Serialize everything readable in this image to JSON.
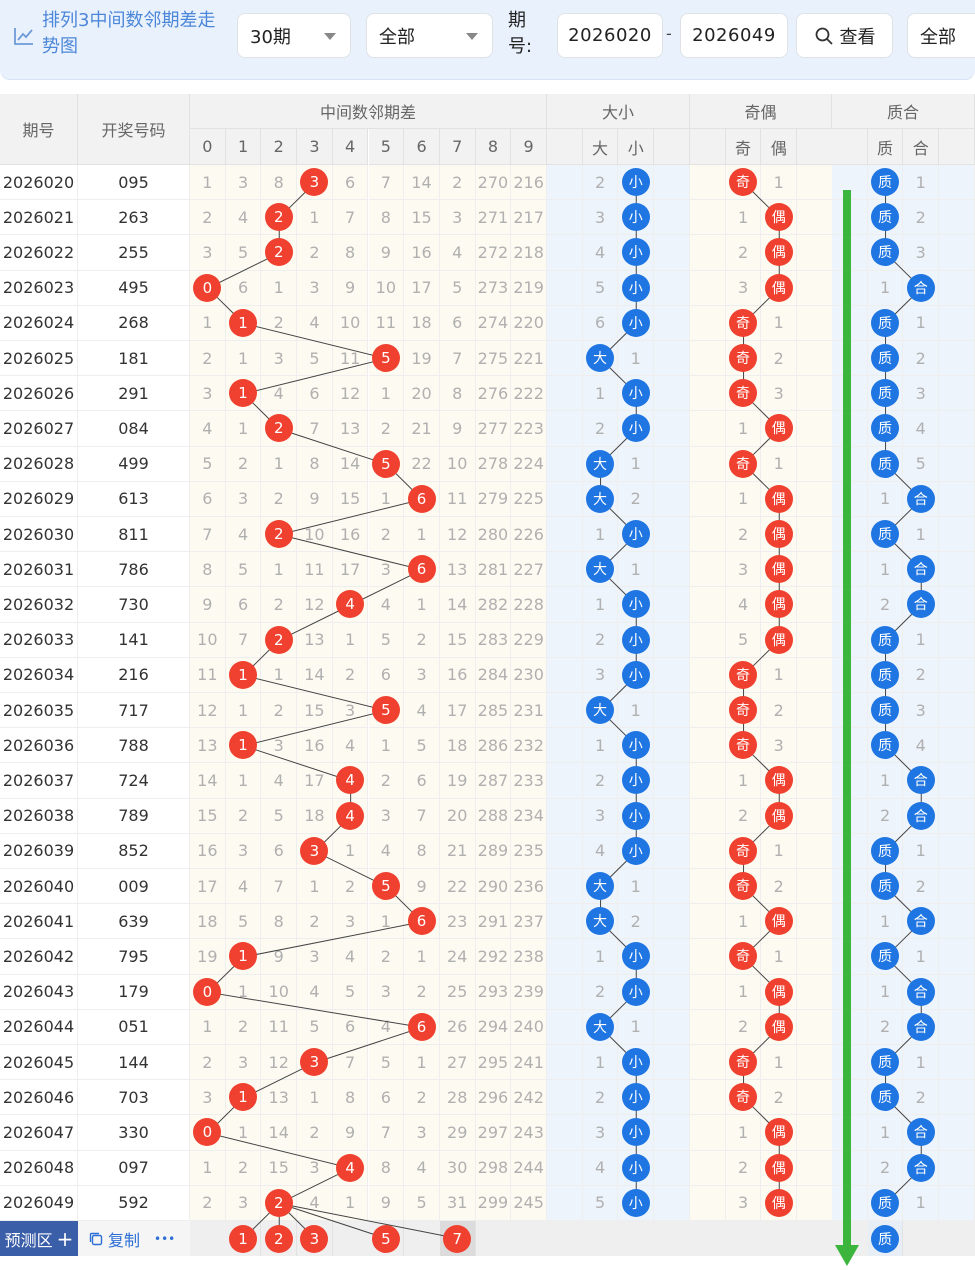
{
  "header": {
    "title": "排列3中间数邻期差走势图",
    "period_select": "30期",
    "filter_select": "全部",
    "issue_label": "期号:",
    "issue_from": "2026020",
    "issue_to": "2026049",
    "view_button": "查看",
    "all_button": "全部"
  },
  "columns": {
    "period": "期号",
    "draw": "开奖号码",
    "mid_group": "中间数邻期差",
    "mid_digits": [
      "0",
      "1",
      "2",
      "3",
      "4",
      "5",
      "6",
      "7",
      "8",
      "9"
    ],
    "size_group": "大小",
    "size_labels": [
      "大",
      "小"
    ],
    "odd_group": "奇偶",
    "odd_labels": [
      "奇",
      "偶"
    ],
    "prime_group": "质合",
    "prime_labels": [
      "质",
      "合"
    ]
  },
  "rows": [
    {
      "p": "2026020",
      "d": "095",
      "mid": [
        "1",
        "3",
        "8",
        "3",
        "6",
        "7",
        "14",
        "2",
        "270",
        "216"
      ],
      "hit": 3,
      "size": [
        "2",
        "小"
      ],
      "sizeHit": 1,
      "odd": [
        "奇",
        "1"
      ],
      "oddHit": 0,
      "prime": [
        "质",
        "1"
      ],
      "primeHit": 0
    },
    {
      "p": "2026021",
      "d": "263",
      "mid": [
        "2",
        "4",
        "2",
        "1",
        "7",
        "8",
        "15",
        "3",
        "271",
        "217"
      ],
      "hit": 2,
      "size": [
        "3",
        "小"
      ],
      "sizeHit": 1,
      "odd": [
        "1",
        "偶"
      ],
      "oddHit": 1,
      "prime": [
        "质",
        "2"
      ],
      "primeHit": 0
    },
    {
      "p": "2026022",
      "d": "255",
      "mid": [
        "3",
        "5",
        "2",
        "2",
        "8",
        "9",
        "16",
        "4",
        "272",
        "218"
      ],
      "hit": 2,
      "size": [
        "4",
        "小"
      ],
      "sizeHit": 1,
      "odd": [
        "2",
        "偶"
      ],
      "oddHit": 1,
      "prime": [
        "质",
        "3"
      ],
      "primeHit": 0
    },
    {
      "p": "2026023",
      "d": "495",
      "mid": [
        "0",
        "6",
        "1",
        "3",
        "9",
        "10",
        "17",
        "5",
        "273",
        "219"
      ],
      "hit": 0,
      "size": [
        "5",
        "小"
      ],
      "sizeHit": 1,
      "odd": [
        "3",
        "偶"
      ],
      "oddHit": 1,
      "prime": [
        "1",
        "合"
      ],
      "primeHit": 1
    },
    {
      "p": "2026024",
      "d": "268",
      "mid": [
        "1",
        "1",
        "2",
        "4",
        "10",
        "11",
        "18",
        "6",
        "274",
        "220"
      ],
      "hit": 1,
      "size": [
        "6",
        "小"
      ],
      "sizeHit": 1,
      "odd": [
        "奇",
        "1"
      ],
      "oddHit": 0,
      "prime": [
        "质",
        "1"
      ],
      "primeHit": 0
    },
    {
      "p": "2026025",
      "d": "181",
      "mid": [
        "2",
        "1",
        "3",
        "5",
        "11",
        "5",
        "19",
        "7",
        "275",
        "221"
      ],
      "hit": 5,
      "size": [
        "大",
        "1"
      ],
      "sizeHit": 0,
      "odd": [
        "奇",
        "2"
      ],
      "oddHit": 0,
      "prime": [
        "质",
        "2"
      ],
      "primeHit": 0
    },
    {
      "p": "2026026",
      "d": "291",
      "mid": [
        "3",
        "1",
        "4",
        "6",
        "12",
        "1",
        "20",
        "8",
        "276",
        "222"
      ],
      "hit": 1,
      "size": [
        "1",
        "小"
      ],
      "sizeHit": 1,
      "odd": [
        "奇",
        "3"
      ],
      "oddHit": 0,
      "prime": [
        "质",
        "3"
      ],
      "primeHit": 0
    },
    {
      "p": "2026027",
      "d": "084",
      "mid": [
        "4",
        "1",
        "2",
        "7",
        "13",
        "2",
        "21",
        "9",
        "277",
        "223"
      ],
      "hit": 2,
      "size": [
        "2",
        "小"
      ],
      "sizeHit": 1,
      "odd": [
        "1",
        "偶"
      ],
      "oddHit": 1,
      "prime": [
        "质",
        "4"
      ],
      "primeHit": 0
    },
    {
      "p": "2026028",
      "d": "499",
      "mid": [
        "5",
        "2",
        "1",
        "8",
        "14",
        "5",
        "22",
        "10",
        "278",
        "224"
      ],
      "hit": 5,
      "size": [
        "大",
        "1"
      ],
      "sizeHit": 0,
      "odd": [
        "奇",
        "1"
      ],
      "oddHit": 0,
      "prime": [
        "质",
        "5"
      ],
      "primeHit": 0
    },
    {
      "p": "2026029",
      "d": "613",
      "mid": [
        "6",
        "3",
        "2",
        "9",
        "15",
        "1",
        "6",
        "11",
        "279",
        "225"
      ],
      "hit": 6,
      "size": [
        "大",
        "2"
      ],
      "sizeHit": 0,
      "odd": [
        "1",
        "偶"
      ],
      "oddHit": 1,
      "prime": [
        "1",
        "合"
      ],
      "primeHit": 1
    },
    {
      "p": "2026030",
      "d": "811",
      "mid": [
        "7",
        "4",
        "2",
        "10",
        "16",
        "2",
        "1",
        "12",
        "280",
        "226"
      ],
      "hit": 2,
      "size": [
        "1",
        "小"
      ],
      "sizeHit": 1,
      "odd": [
        "2",
        "偶"
      ],
      "oddHit": 1,
      "prime": [
        "质",
        "1"
      ],
      "primeHit": 0
    },
    {
      "p": "2026031",
      "d": "786",
      "mid": [
        "8",
        "5",
        "1",
        "11",
        "17",
        "3",
        "6",
        "13",
        "281",
        "227"
      ],
      "hit": 6,
      "size": [
        "大",
        "1"
      ],
      "sizeHit": 0,
      "odd": [
        "3",
        "偶"
      ],
      "oddHit": 1,
      "prime": [
        "1",
        "合"
      ],
      "primeHit": 1
    },
    {
      "p": "2026032",
      "d": "730",
      "mid": [
        "9",
        "6",
        "2",
        "12",
        "4",
        "4",
        "1",
        "14",
        "282",
        "228"
      ],
      "hit": 4,
      "size": [
        "1",
        "小"
      ],
      "sizeHit": 1,
      "odd": [
        "4",
        "偶"
      ],
      "oddHit": 1,
      "prime": [
        "2",
        "合"
      ],
      "primeHit": 1
    },
    {
      "p": "2026033",
      "d": "141",
      "mid": [
        "10",
        "7",
        "2",
        "13",
        "1",
        "5",
        "2",
        "15",
        "283",
        "229"
      ],
      "hit": 2,
      "size": [
        "2",
        "小"
      ],
      "sizeHit": 1,
      "odd": [
        "5",
        "偶"
      ],
      "oddHit": 1,
      "prime": [
        "质",
        "1"
      ],
      "primeHit": 0
    },
    {
      "p": "2026034",
      "d": "216",
      "mid": [
        "11",
        "1",
        "1",
        "14",
        "2",
        "6",
        "3",
        "16",
        "284",
        "230"
      ],
      "hit": 1,
      "size": [
        "3",
        "小"
      ],
      "sizeHit": 1,
      "odd": [
        "奇",
        "1"
      ],
      "oddHit": 0,
      "prime": [
        "质",
        "2"
      ],
      "primeHit": 0
    },
    {
      "p": "2026035",
      "d": "717",
      "mid": [
        "12",
        "1",
        "2",
        "15",
        "3",
        "5",
        "4",
        "17",
        "285",
        "231"
      ],
      "hit": 5,
      "size": [
        "大",
        "1"
      ],
      "sizeHit": 0,
      "odd": [
        "奇",
        "2"
      ],
      "oddHit": 0,
      "prime": [
        "质",
        "3"
      ],
      "primeHit": 0
    },
    {
      "p": "2026036",
      "d": "788",
      "mid": [
        "13",
        "1",
        "3",
        "16",
        "4",
        "1",
        "5",
        "18",
        "286",
        "232"
      ],
      "hit": 1,
      "size": [
        "1",
        "小"
      ],
      "sizeHit": 1,
      "odd": [
        "奇",
        "3"
      ],
      "oddHit": 0,
      "prime": [
        "质",
        "4"
      ],
      "primeHit": 0
    },
    {
      "p": "2026037",
      "d": "724",
      "mid": [
        "14",
        "1",
        "4",
        "17",
        "4",
        "2",
        "6",
        "19",
        "287",
        "233"
      ],
      "hit": 4,
      "size": [
        "2",
        "小"
      ],
      "sizeHit": 1,
      "odd": [
        "1",
        "偶"
      ],
      "oddHit": 1,
      "prime": [
        "1",
        "合"
      ],
      "primeHit": 1
    },
    {
      "p": "2026038",
      "d": "789",
      "mid": [
        "15",
        "2",
        "5",
        "18",
        "4",
        "3",
        "7",
        "20",
        "288",
        "234"
      ],
      "hit": 4,
      "size": [
        "3",
        "小"
      ],
      "sizeHit": 1,
      "odd": [
        "2",
        "偶"
      ],
      "oddHit": 1,
      "prime": [
        "2",
        "合"
      ],
      "primeHit": 1
    },
    {
      "p": "2026039",
      "d": "852",
      "mid": [
        "16",
        "3",
        "6",
        "3",
        "1",
        "4",
        "8",
        "21",
        "289",
        "235"
      ],
      "hit": 3,
      "size": [
        "4",
        "小"
      ],
      "sizeHit": 1,
      "odd": [
        "奇",
        "1"
      ],
      "oddHit": 0,
      "prime": [
        "质",
        "1"
      ],
      "primeHit": 0
    },
    {
      "p": "2026040",
      "d": "009",
      "mid": [
        "17",
        "4",
        "7",
        "1",
        "2",
        "5",
        "9",
        "22",
        "290",
        "236"
      ],
      "hit": 5,
      "size": [
        "大",
        "1"
      ],
      "sizeHit": 0,
      "odd": [
        "奇",
        "2"
      ],
      "oddHit": 0,
      "prime": [
        "质",
        "2"
      ],
      "primeHit": 0
    },
    {
      "p": "2026041",
      "d": "639",
      "mid": [
        "18",
        "5",
        "8",
        "2",
        "3",
        "1",
        "6",
        "23",
        "291",
        "237"
      ],
      "hit": 6,
      "size": [
        "大",
        "2"
      ],
      "sizeHit": 0,
      "odd": [
        "1",
        "偶"
      ],
      "oddHit": 1,
      "prime": [
        "1",
        "合"
      ],
      "primeHit": 1
    },
    {
      "p": "2026042",
      "d": "795",
      "mid": [
        "19",
        "1",
        "9",
        "3",
        "4",
        "2",
        "1",
        "24",
        "292",
        "238"
      ],
      "hit": 1,
      "size": [
        "1",
        "小"
      ],
      "sizeHit": 1,
      "odd": [
        "奇",
        "1"
      ],
      "oddHit": 0,
      "prime": [
        "质",
        "1"
      ],
      "primeHit": 0
    },
    {
      "p": "2026043",
      "d": "179",
      "mid": [
        "0",
        "1",
        "10",
        "4",
        "5",
        "3",
        "2",
        "25",
        "293",
        "239"
      ],
      "hit": 0,
      "size": [
        "2",
        "小"
      ],
      "sizeHit": 1,
      "odd": [
        "1",
        "偶"
      ],
      "oddHit": 1,
      "prime": [
        "1",
        "合"
      ],
      "primeHit": 1
    },
    {
      "p": "2026044",
      "d": "051",
      "mid": [
        "1",
        "2",
        "11",
        "5",
        "6",
        "4",
        "6",
        "26",
        "294",
        "240"
      ],
      "hit": 6,
      "size": [
        "大",
        "1"
      ],
      "sizeHit": 0,
      "odd": [
        "2",
        "偶"
      ],
      "oddHit": 1,
      "prime": [
        "2",
        "合"
      ],
      "primeHit": 1
    },
    {
      "p": "2026045",
      "d": "144",
      "mid": [
        "2",
        "3",
        "12",
        "3",
        "7",
        "5",
        "1",
        "27",
        "295",
        "241"
      ],
      "hit": 3,
      "size": [
        "1",
        "小"
      ],
      "sizeHit": 1,
      "odd": [
        "奇",
        "1"
      ],
      "oddHit": 0,
      "prime": [
        "质",
        "1"
      ],
      "primeHit": 0
    },
    {
      "p": "2026046",
      "d": "703",
      "mid": [
        "3",
        "1",
        "13",
        "1",
        "8",
        "6",
        "2",
        "28",
        "296",
        "242"
      ],
      "hit": 1,
      "size": [
        "2",
        "小"
      ],
      "sizeHit": 1,
      "odd": [
        "奇",
        "2"
      ],
      "oddHit": 0,
      "prime": [
        "质",
        "2"
      ],
      "primeHit": 0
    },
    {
      "p": "2026047",
      "d": "330",
      "mid": [
        "0",
        "1",
        "14",
        "2",
        "9",
        "7",
        "3",
        "29",
        "297",
        "243"
      ],
      "hit": 0,
      "size": [
        "3",
        "小"
      ],
      "sizeHit": 1,
      "odd": [
        "1",
        "偶"
      ],
      "oddHit": 1,
      "prime": [
        "1",
        "合"
      ],
      "primeHit": 1
    },
    {
      "p": "2026048",
      "d": "097",
      "mid": [
        "1",
        "2",
        "15",
        "3",
        "4",
        "8",
        "4",
        "30",
        "298",
        "244"
      ],
      "hit": 4,
      "size": [
        "4",
        "小"
      ],
      "sizeHit": 1,
      "odd": [
        "2",
        "偶"
      ],
      "oddHit": 1,
      "prime": [
        "2",
        "合"
      ],
      "primeHit": 1
    },
    {
      "p": "2026049",
      "d": "592",
      "mid": [
        "2",
        "3",
        "2",
        "4",
        "1",
        "9",
        "5",
        "31",
        "299",
        "245"
      ],
      "hit": 2,
      "size": [
        "5",
        "小"
      ],
      "sizeHit": 1,
      "odd": [
        "3",
        "偶"
      ],
      "oddHit": 1,
      "prime": [
        "质",
        "1"
      ],
      "primeHit": 0
    }
  ],
  "prediction": {
    "label": "预测区",
    "plus": "+",
    "copy": "复制",
    "more": "•••",
    "balls": [
      {
        "col": 1,
        "text": "1"
      },
      {
        "col": 2,
        "text": "2"
      },
      {
        "col": 3,
        "text": "3"
      },
      {
        "col": 5,
        "text": "5"
      },
      {
        "col": 7,
        "text": "7"
      }
    ],
    "prime_ball": "质"
  },
  "colors": {
    "red": "#f0402f",
    "blue": "#1f76e2",
    "arrow": "#3cb53c",
    "title": "#4c87d9"
  }
}
